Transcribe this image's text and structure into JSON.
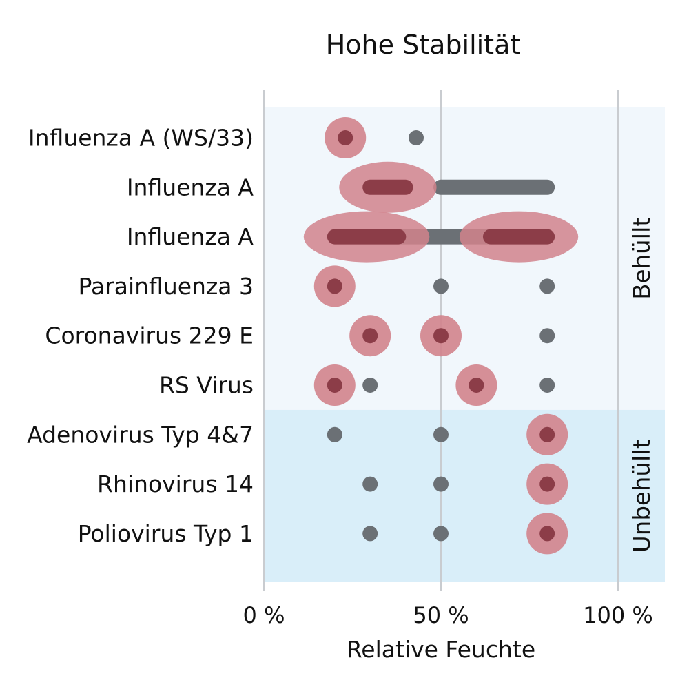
{
  "chart_data": {
    "type": "scatter",
    "title": "Hohe Stabilität",
    "xlabel": "Relative Feuchte",
    "xlim": [
      0,
      100
    ],
    "x_ticks": [
      "0 %",
      "50 %",
      "100 %"
    ],
    "grid": true,
    "groups": [
      {
        "name": "Behüllt",
        "rows": [
          0,
          5
        ],
        "color": "#f1f7fc"
      },
      {
        "name": "Unbehüllt",
        "rows": [
          6,
          8
        ],
        "color": "#d9eef9"
      }
    ],
    "colors": {
      "stable_core": "#8c3d48",
      "stable_halo": "#d1838c",
      "other": "#6b7075",
      "grid": "#c9ccd0"
    },
    "rows": [
      {
        "label": "Influenza A (WS/33)",
        "points": [
          {
            "x": 23,
            "stable": true
          },
          {
            "x": 43,
            "stable": false
          }
        ],
        "ranges": []
      },
      {
        "label": "Influenza A",
        "points": [],
        "ranges": [
          {
            "from": 30,
            "to": 40,
            "stable": true
          },
          {
            "from": 50,
            "to": 80,
            "stable": false
          }
        ]
      },
      {
        "label": "Influenza A",
        "points": [],
        "ranges": [
          {
            "from": 20,
            "to": 80,
            "stable": false
          },
          {
            "from": 20,
            "to": 38,
            "stable": true
          },
          {
            "from": 64,
            "to": 80,
            "stable": true
          }
        ]
      },
      {
        "label": "Parainfluenza 3",
        "points": [
          {
            "x": 20,
            "stable": true
          },
          {
            "x": 50,
            "stable": false
          },
          {
            "x": 80,
            "stable": false
          }
        ],
        "ranges": []
      },
      {
        "label": "Coronavirus 229 E",
        "points": [
          {
            "x": 30,
            "stable": true
          },
          {
            "x": 50,
            "stable": true
          },
          {
            "x": 80,
            "stable": false
          }
        ],
        "ranges": []
      },
      {
        "label": "RS Virus",
        "points": [
          {
            "x": 20,
            "stable": true
          },
          {
            "x": 30,
            "stable": false
          },
          {
            "x": 60,
            "stable": true
          },
          {
            "x": 80,
            "stable": false
          }
        ],
        "ranges": []
      },
      {
        "label": "Adenovirus Typ 4&7",
        "points": [
          {
            "x": 20,
            "stable": false
          },
          {
            "x": 50,
            "stable": false
          },
          {
            "x": 80,
            "stable": true
          }
        ],
        "ranges": []
      },
      {
        "label": "Rhinovirus 14",
        "points": [
          {
            "x": 30,
            "stable": false
          },
          {
            "x": 50,
            "stable": false
          },
          {
            "x": 80,
            "stable": true
          }
        ],
        "ranges": []
      },
      {
        "label": "Poliovirus Typ 1",
        "points": [
          {
            "x": 30,
            "stable": false
          },
          {
            "x": 50,
            "stable": false
          },
          {
            "x": 80,
            "stable": true
          }
        ],
        "ranges": []
      }
    ]
  }
}
